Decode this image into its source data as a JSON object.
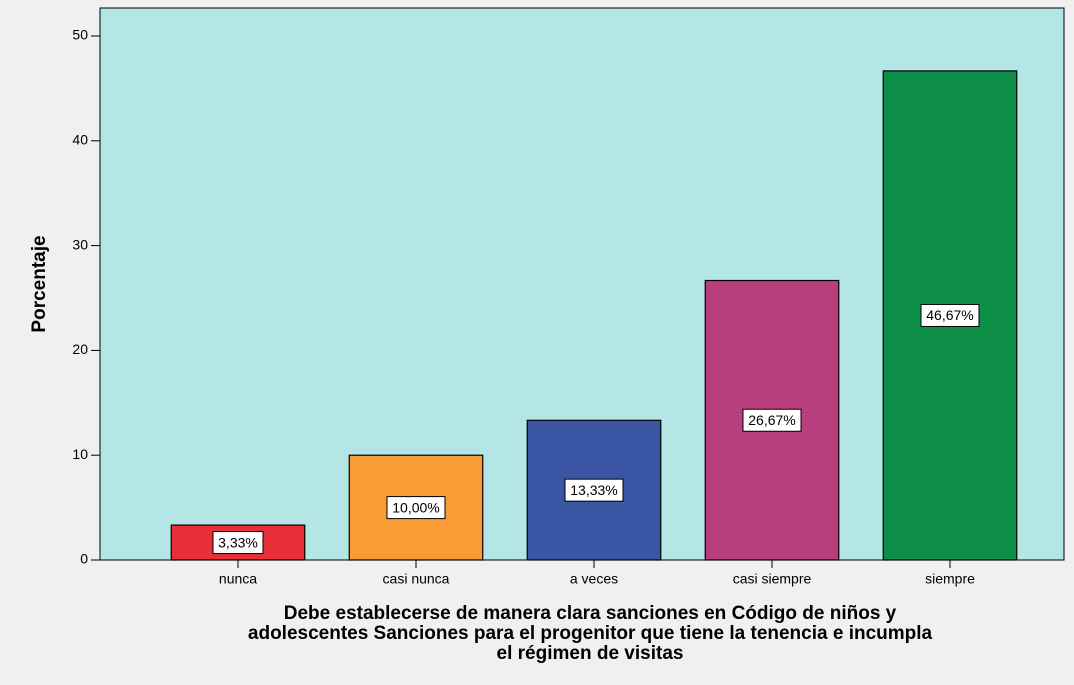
{
  "chart_data": {
    "type": "bar",
    "ylabel": "Porcentaje",
    "xlabel": [
      "Debe establecerse de manera clara sanciones en Código de niños y",
      "adolescentes Sanciones para el progenitor que tiene la tenencia e incumpla",
      "el régimen de visitas"
    ],
    "categories": [
      "nunca",
      "casi nunca",
      "a veces",
      "casi siempre",
      "siempre"
    ],
    "values": [
      3.33,
      10,
      13.33,
      26.67,
      46.67
    ],
    "value_labels": [
      "3,33%",
      "10,00%",
      "13,33%",
      "26,67%",
      "46,67%"
    ],
    "colors": [
      "#e8303a",
      "#f99c35",
      "#3a55a4",
      "#b93e7e",
      "#0e8f48"
    ],
    "ylim": [
      0,
      50
    ],
    "yticks": [
      0,
      10,
      20,
      30,
      40,
      50
    ],
    "background": "#b4e6e6"
  }
}
